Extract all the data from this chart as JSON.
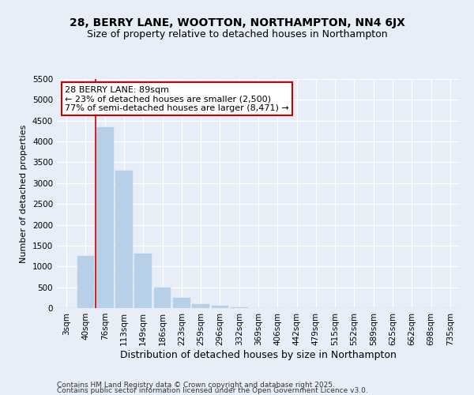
{
  "title": "28, BERRY LANE, WOOTTON, NORTHAMPTON, NN4 6JX",
  "subtitle": "Size of property relative to detached houses in Northampton",
  "xlabel": "Distribution of detached houses by size in Northampton",
  "ylabel": "Number of detached properties",
  "categories": [
    "3sqm",
    "40sqm",
    "76sqm",
    "113sqm",
    "149sqm",
    "186sqm",
    "223sqm",
    "259sqm",
    "296sqm",
    "332sqm",
    "369sqm",
    "406sqm",
    "442sqm",
    "479sqm",
    "515sqm",
    "552sqm",
    "589sqm",
    "625sqm",
    "662sqm",
    "698sqm",
    "735sqm"
  ],
  "values": [
    0,
    1250,
    4350,
    3300,
    1300,
    500,
    250,
    100,
    60,
    10,
    5,
    3,
    2,
    1,
    1,
    1,
    0,
    0,
    0,
    0,
    0
  ],
  "bar_color": "#b8cfe8",
  "bar_edgecolor": "#b8cfe8",
  "vline_x": 1.5,
  "vline_color": "#cc0000",
  "ylim": [
    0,
    5500
  ],
  "yticks": [
    0,
    500,
    1000,
    1500,
    2000,
    2500,
    3000,
    3500,
    4000,
    4500,
    5000,
    5500
  ],
  "annotation_text": "28 BERRY LANE: 89sqm\n← 23% of detached houses are smaller (2,500)\n77% of semi-detached houses are larger (8,471) →",
  "annotation_box_color": "#cc0000",
  "annotation_bg": "#ffffff",
  "footer1": "Contains HM Land Registry data © Crown copyright and database right 2025.",
  "footer2": "Contains public sector information licensed under the Open Government Licence v3.0.",
  "bg_color": "#e8eef8",
  "plot_bg_color": "#e8eef8",
  "title_fontsize": 10,
  "subtitle_fontsize": 9,
  "xlabel_fontsize": 9,
  "ylabel_fontsize": 8,
  "tick_fontsize": 7.5,
  "annot_fontsize": 8,
  "footer_fontsize": 6.5
}
